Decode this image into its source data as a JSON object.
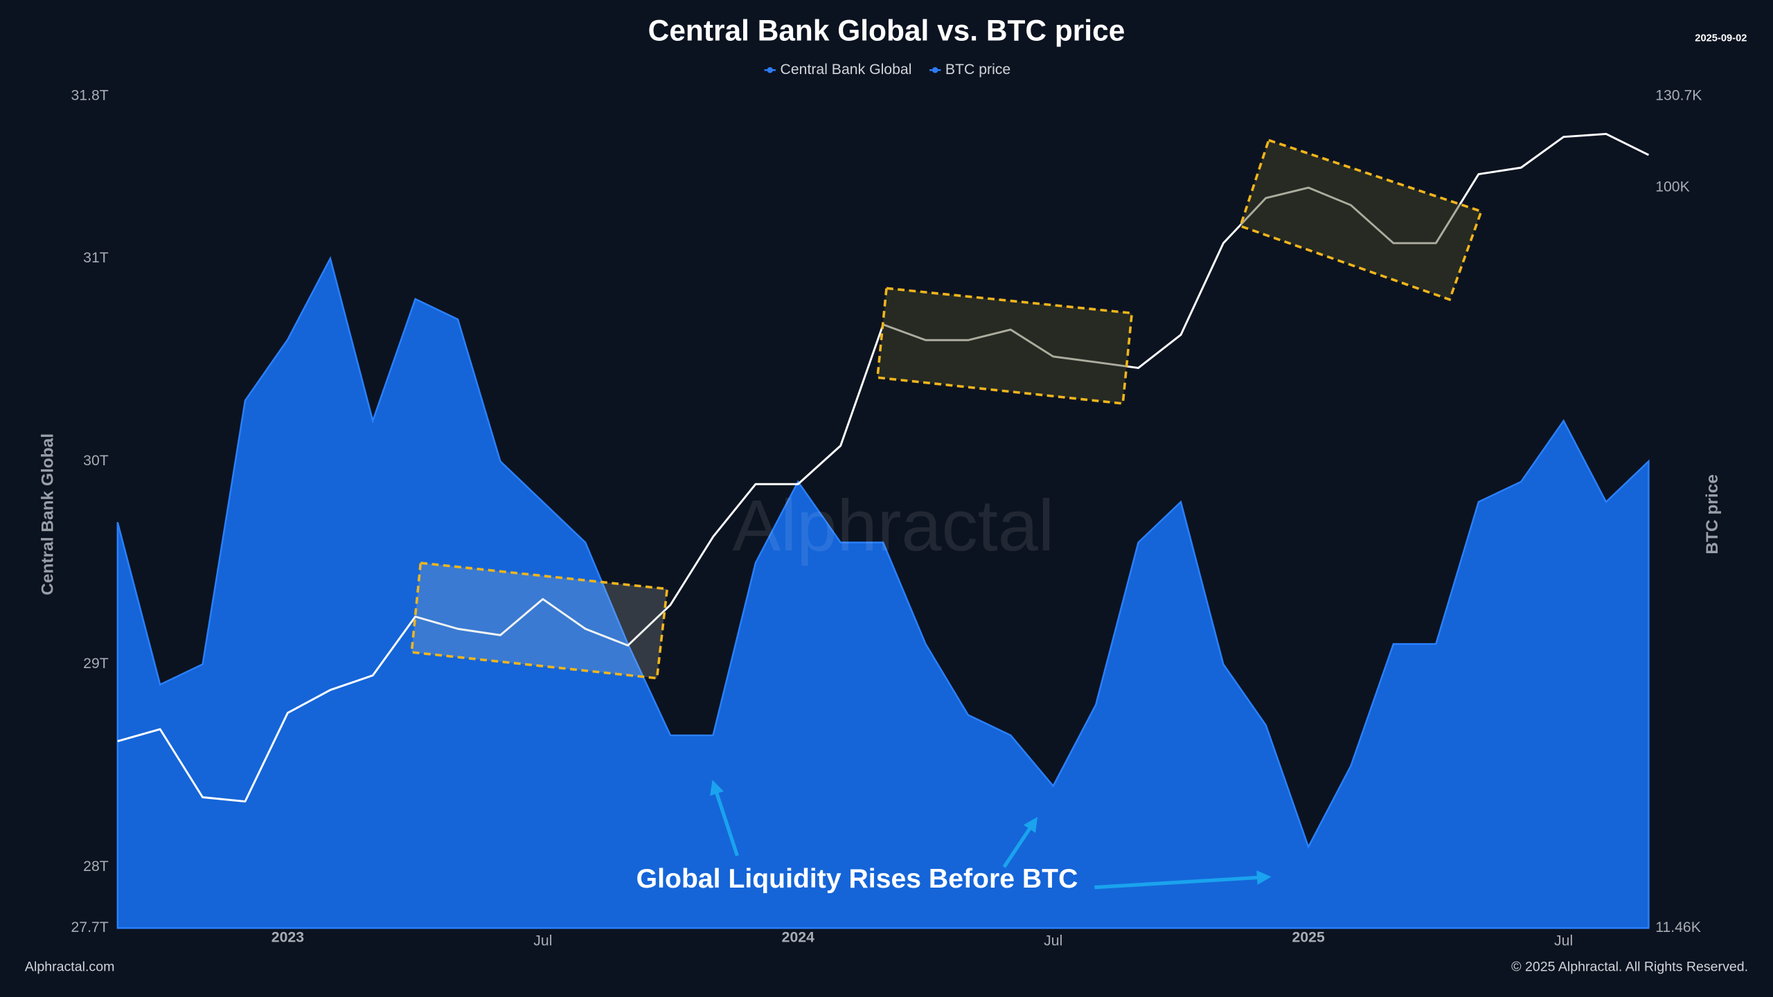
{
  "chart_data": {
    "type": "line",
    "title": "Central Bank Global vs. BTC price",
    "date": "2025-09-02",
    "watermark": "Alphractal",
    "annotation": "Global Liquidity Rises Before BTC",
    "footer_left": "Alphractal.com",
    "footer_right": "© 2025 Alphractal. All Rights Reserved.",
    "y_label": "Central Bank Global",
    "y2_label": "BTC price",
    "y2scale": "log",
    "grid": false,
    "legend": "top",
    "x": [
      "2022-09",
      "2022-10",
      "2022-11",
      "2022-12",
      "2023-01",
      "2023-02",
      "2023-03",
      "2023-04",
      "2023-05",
      "2023-06",
      "2023-07",
      "2023-08",
      "2023-09",
      "2023-10",
      "2023-11",
      "2023-12",
      "2024-01",
      "2024-02",
      "2024-03",
      "2024-04",
      "2024-05",
      "2024-06",
      "2024-07",
      "2024-08",
      "2024-09",
      "2024-10",
      "2024-11",
      "2024-12",
      "2025-01",
      "2025-02",
      "2025-03",
      "2025-04",
      "2025-05",
      "2025-06",
      "2025-07",
      "2025-08",
      "2025-09"
    ],
    "xlim": [
      "2022-09",
      "2025-09"
    ],
    "xticks": [
      {
        "value": "2023-01",
        "label": "2023"
      },
      {
        "value": "2023-07",
        "label": "Jul"
      },
      {
        "value": "2024-01",
        "label": "2024"
      },
      {
        "value": "2024-07",
        "label": "Jul"
      },
      {
        "value": "2025-01",
        "label": "2025"
      },
      {
        "value": "2025-07",
        "label": "Jul"
      }
    ],
    "ylim": [
      27.7,
      31.8
    ],
    "yticks": [
      {
        "value": 27.7,
        "label": "27.7T"
      },
      {
        "value": 28,
        "label": "28T"
      },
      {
        "value": 29,
        "label": "29T"
      },
      {
        "value": 30,
        "label": "30T"
      },
      {
        "value": 31,
        "label": "31T"
      },
      {
        "value": 31.8,
        "label": "31.8T"
      }
    ],
    "y2lim": [
      11460,
      130700
    ],
    "y2ticks": [
      {
        "value": 11460,
        "label": "11.46K"
      },
      {
        "value": 100000,
        "label": "100K"
      },
      {
        "value": 130700,
        "label": "130.7K"
      }
    ],
    "series": [
      {
        "name": "Central Bank Global",
        "type": "area",
        "color": "#1565d8",
        "axis": "y",
        "values": [
          29.7,
          28.9,
          29.0,
          30.3,
          30.6,
          31.0,
          30.2,
          30.8,
          30.7,
          30.0,
          29.8,
          29.6,
          29.1,
          28.65,
          28.65,
          29.5,
          29.9,
          29.6,
          29.6,
          29.1,
          28.75,
          28.65,
          28.4,
          28.8,
          29.6,
          29.8,
          29.0,
          28.7,
          28.1,
          28.5,
          29.1,
          29.1,
          29.8,
          29.9,
          30.2,
          29.8,
          30.0
        ]
      },
      {
        "name": "BTC price",
        "type": "line",
        "color": "#ffffff",
        "axis": "y2",
        "values": [
          19800,
          20500,
          16800,
          16600,
          21500,
          23000,
          24000,
          28500,
          27500,
          27000,
          30000,
          27500,
          26200,
          29500,
          36000,
          42000,
          42000,
          47000,
          67000,
          64000,
          64000,
          66000,
          61000,
          60000,
          59000,
          65000,
          85000,
          97000,
          100000,
          95000,
          85000,
          85000,
          104000,
          106000,
          116000,
          117000,
          110000
        ]
      }
    ]
  }
}
